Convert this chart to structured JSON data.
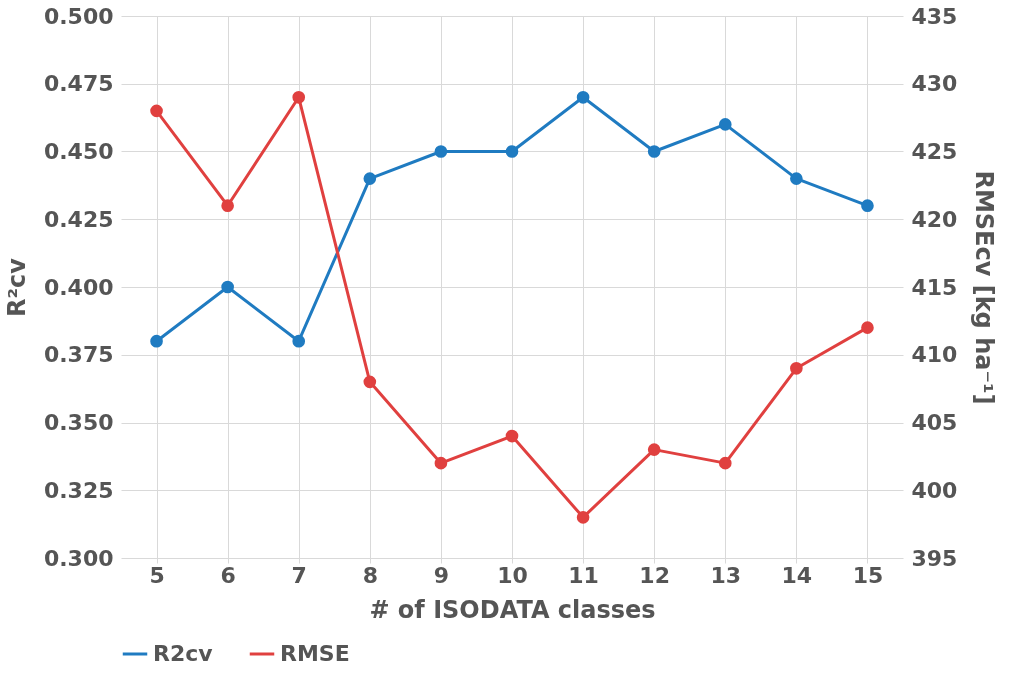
{
  "chart_data": {
    "type": "line",
    "xlabel": "# of ISODATA classes",
    "ylabel": "R²cv",
    "y2label": "RMSEcv [kg ha⁻¹]",
    "categories": [
      "5",
      "6",
      "7",
      "8",
      "9",
      "10",
      "11",
      "12",
      "13",
      "14",
      "15"
    ],
    "series": [
      {
        "name": "R2cv",
        "color": "#1f7bc1",
        "values": [
          0.38,
          0.4,
          0.38,
          0.44,
          0.45,
          0.45,
          0.47,
          0.45,
          0.46,
          0.44,
          0.43
        ]
      },
      {
        "name": "RMSE",
        "color": "#e0403f",
        "axis": "y2",
        "values": [
          428,
          421,
          429,
          408,
          402,
          404,
          398,
          403,
          402,
          409,
          412
        ]
      }
    ],
    "ylim": [
      0.3,
      0.5
    ],
    "yticks": [
      {
        "value": 0.3,
        "label": "0.300"
      },
      {
        "value": 0.325,
        "label": "0.325"
      },
      {
        "value": 0.35,
        "label": "0.350"
      },
      {
        "value": 0.375,
        "label": "0.375"
      },
      {
        "value": 0.4,
        "label": "0.400"
      },
      {
        "value": 0.425,
        "label": "0.425"
      },
      {
        "value": 0.45,
        "label": "0.450"
      },
      {
        "value": 0.475,
        "label": "0.475"
      },
      {
        "value": 0.5,
        "label": "0.500"
      }
    ],
    "y2lim": [
      395,
      435
    ],
    "y2ticks": [
      395,
      400,
      405,
      410,
      415,
      420,
      425,
      430,
      435
    ],
    "grid": true,
    "legend": "bottom",
    "marker": "circle",
    "line_style": "solid"
  }
}
